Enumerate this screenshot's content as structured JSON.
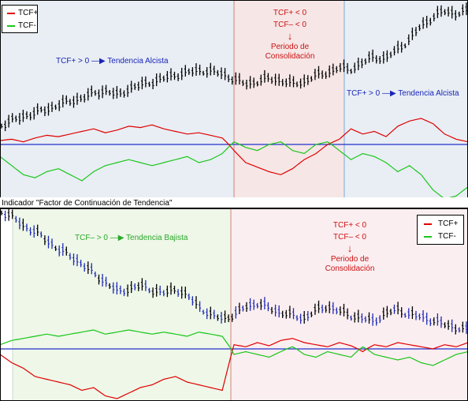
{
  "colors": {
    "tcf_plus": "#e00000",
    "tcf_minus": "#19c619",
    "price": "#000000",
    "price_down": "#1f2bb4",
    "zero_line": "#2233cc",
    "bg_top_trend": "#e8eef4",
    "bg_top_consolidation": "#f6e6e6",
    "bg_bottom_trend": "#eef7e8",
    "bg_bottom_consolidation": "#fbeef0",
    "annotation_blue": "#1a25b8",
    "annotation_red": "#cc1111",
    "annotation_green": "#2aa82a",
    "separator": "#000000"
  },
  "caption": "Indicador \"Factor de Continuación de Tendencia\"",
  "top_panel": {
    "legend": [
      {
        "label": "TCF+",
        "color": "#e00000"
      },
      {
        "label": "TCF-",
        "color": "#19c619"
      }
    ],
    "annotation_left": "TCF+ > 0 —▶ Tendencia Alcista",
    "annotation_right": "TCF+ > 0 —▶ Tendencia Alcista",
    "consolidation": {
      "line1": "TCF+ < 0",
      "line2": "TCF– < 0",
      "arrow": "↓",
      "line3": "Periodo de",
      "line4": "Consolidación"
    }
  },
  "bottom_panel": {
    "legend": [
      {
        "label": "TCF+",
        "color": "#e00000"
      },
      {
        "label": "TCF-",
        "color": "#19c619"
      }
    ],
    "annotation_left": "TCF– > 0 —▶ Tendencia Bajista",
    "consolidation": {
      "line1": "TCF+ < 0",
      "line2": "TCF– < 0",
      "arrow": "↓",
      "line3": "Periodo de",
      "line4": "Consolidación"
    }
  },
  "chart_data": [
    {
      "type": "line",
      "panel": "top",
      "title": "",
      "xlabel": "",
      "ylabel": "",
      "grid": false,
      "legend_position": "top-left",
      "zones": [
        "trend",
        "consolidation",
        "trend"
      ],
      "series": [
        {
          "name": "TCF+",
          "values": [
            3,
            4,
            2,
            5,
            7,
            6,
            8,
            10,
            12,
            9,
            11,
            14,
            13,
            15,
            12,
            10,
            8,
            9,
            7,
            5,
            -4,
            -12,
            -15,
            -18,
            -20,
            -16,
            -10,
            -6,
            0,
            4,
            12,
            8,
            10,
            6,
            14,
            18,
            20,
            16,
            8,
            4,
            2
          ]
        },
        {
          "name": "TCF-",
          "values": [
            -8,
            -14,
            -20,
            -22,
            -18,
            -16,
            -20,
            -24,
            -18,
            -14,
            -12,
            -10,
            -12,
            -14,
            -12,
            -10,
            -8,
            -12,
            -10,
            -6,
            2,
            -2,
            -4,
            0,
            2,
            -4,
            -6,
            0,
            2,
            -4,
            -10,
            -6,
            -8,
            -12,
            -18,
            -14,
            -20,
            -30,
            -36,
            -34,
            -28
          ]
        }
      ],
      "price": [
        100,
        104,
        108,
        111,
        114,
        118,
        121,
        124,
        128,
        130,
        126,
        132,
        135,
        138,
        141,
        144,
        146,
        148,
        147,
        145,
        140,
        136,
        138,
        141,
        139,
        136,
        138,
        143,
        146,
        150,
        149,
        154,
        160,
        158,
        166,
        174,
        186,
        194,
        200,
        198,
        200
      ],
      "zero": 0
    },
    {
      "type": "line",
      "panel": "bottom",
      "title": "",
      "xlabel": "",
      "ylabel": "",
      "grid": false,
      "legend_position": "top-right",
      "zones": [
        "trend",
        "consolidation"
      ],
      "series": [
        {
          "name": "TCF+",
          "values": [
            -4,
            -10,
            -14,
            -20,
            -22,
            -24,
            -26,
            -30,
            -28,
            -34,
            -36,
            -32,
            -28,
            -26,
            -22,
            -20,
            -24,
            -26,
            -28,
            -30,
            4,
            2,
            6,
            3,
            8,
            10,
            6,
            4,
            2,
            6,
            3,
            -2,
            4,
            2,
            6,
            4,
            2,
            0,
            4,
            2,
            6
          ]
        },
        {
          "name": "TCF-",
          "values": [
            4,
            8,
            10,
            12,
            14,
            12,
            14,
            16,
            18,
            14,
            16,
            18,
            16,
            14,
            16,
            14,
            12,
            16,
            14,
            12,
            -4,
            -2,
            -4,
            -6,
            -2,
            2,
            -4,
            -6,
            -2,
            -4,
            -6,
            2,
            -4,
            -6,
            -8,
            -6,
            -10,
            -12,
            -8,
            -4,
            -2
          ]
        }
      ],
      "price": [
        200,
        196,
        190,
        186,
        180,
        174,
        170,
        164,
        158,
        152,
        146,
        148,
        150,
        147,
        145,
        148,
        143,
        136,
        130,
        128,
        130,
        136,
        138,
        135,
        132,
        130,
        128,
        133,
        136,
        133,
        130,
        128,
        126,
        131,
        134,
        131,
        129,
        127,
        124,
        122,
        120
      ],
      "zero": 0
    }
  ]
}
